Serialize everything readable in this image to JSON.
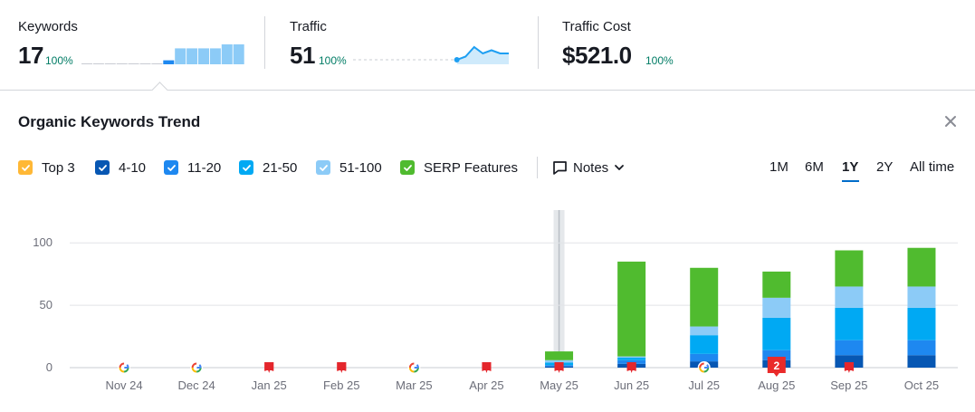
{
  "metrics": [
    {
      "title": "Keywords",
      "value": "17",
      "pct": "100%"
    },
    {
      "title": "Traffic",
      "value": "51",
      "pct": "100%"
    },
    {
      "title": "Traffic Cost",
      "value": "$521.0",
      "pct": "100%"
    }
  ],
  "sparklines": {
    "keywords_bars": [
      0,
      0,
      0,
      0,
      0,
      0,
      0,
      1,
      4,
      4,
      4,
      4,
      5,
      5
    ],
    "traffic_line": [
      0,
      0,
      0,
      0,
      0,
      0,
      0,
      0,
      0,
      0,
      0,
      0,
      0,
      1,
      4,
      2,
      3,
      2,
      2
    ]
  },
  "trend": {
    "title": "Organic Keywords Trend",
    "close_icon": "close-icon"
  },
  "legend": [
    {
      "label": "Top 3",
      "color": "#ffb836",
      "checked": true
    },
    {
      "label": "4-10",
      "color": "#0757b3",
      "checked": true
    },
    {
      "label": "11-20",
      "color": "#1e88f0",
      "checked": true
    },
    {
      "label": "21-50",
      "color": "#00a9f3",
      "checked": true
    },
    {
      "label": "51-100",
      "color": "#8ccbf7",
      "checked": true
    },
    {
      "label": "SERP Features",
      "color": "#50bb2f",
      "checked": true
    }
  ],
  "notes": {
    "label": "Notes",
    "icon": "note-icon"
  },
  "ranges": [
    {
      "label": "1M",
      "active": false
    },
    {
      "label": "6M",
      "active": false
    },
    {
      "label": "1Y",
      "active": true
    },
    {
      "label": "2Y",
      "active": false
    },
    {
      "label": "All time",
      "active": false
    }
  ],
  "chart_data": {
    "type": "bar",
    "stacked": true,
    "categories": [
      "Nov 24",
      "Dec 24",
      "Jan 25",
      "Feb 25",
      "Mar 25",
      "Apr 25",
      "May 25",
      "Jun 25",
      "Jul 25",
      "Aug 25",
      "Sep 25",
      "Oct 25"
    ],
    "series": [
      {
        "name": "Top 3",
        "color": "#ffb836",
        "values": [
          0,
          0,
          0,
          0,
          0,
          0,
          0,
          0,
          0,
          0,
          0,
          0
        ]
      },
      {
        "name": "4-10",
        "color": "#0757b3",
        "values": [
          0,
          0,
          0,
          0,
          0,
          0,
          1,
          3,
          5,
          6,
          10,
          10
        ]
      },
      {
        "name": "11-20",
        "color": "#1e88f0",
        "values": [
          0,
          0,
          0,
          0,
          0,
          0,
          1,
          3,
          6,
          8,
          12,
          12
        ]
      },
      {
        "name": "21-50",
        "color": "#00a9f3",
        "values": [
          0,
          0,
          0,
          0,
          0,
          0,
          2,
          2,
          15,
          26,
          26,
          26
        ]
      },
      {
        "name": "51-100",
        "color": "#8ccbf7",
        "values": [
          0,
          0,
          0,
          0,
          0,
          0,
          2,
          1,
          7,
          16,
          17,
          17
        ]
      },
      {
        "name": "SERP Features",
        "color": "#50bb2f",
        "values": [
          0,
          0,
          0,
          0,
          0,
          0,
          7,
          76,
          47,
          21,
          29,
          31
        ]
      }
    ],
    "yticks": [
      0,
      50,
      100
    ],
    "ylim": [
      0,
      135
    ],
    "grid": true,
    "highlight_category": "May 25",
    "markers": [
      {
        "category": "Nov 24",
        "kind": "google"
      },
      {
        "category": "Dec 24",
        "kind": "google"
      },
      {
        "category": "Jan 25",
        "kind": "flag"
      },
      {
        "category": "Feb 25",
        "kind": "flag"
      },
      {
        "category": "Mar 25",
        "kind": "google"
      },
      {
        "category": "Apr 25",
        "kind": "flag"
      },
      {
        "category": "May 25",
        "kind": "flag"
      },
      {
        "category": "Jun 25",
        "kind": "flag"
      },
      {
        "category": "Jul 25",
        "kind": "google"
      },
      {
        "category": "Aug 25",
        "kind": "badge",
        "label": "2"
      },
      {
        "category": "Sep 25",
        "kind": "flag"
      }
    ]
  }
}
